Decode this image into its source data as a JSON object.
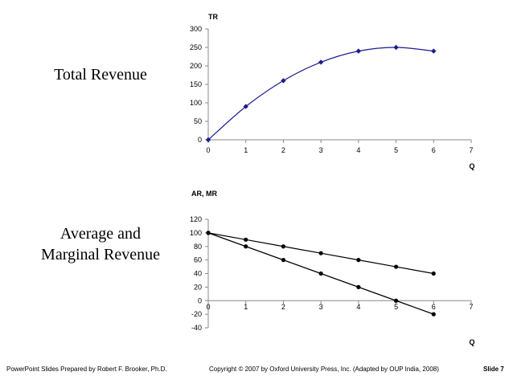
{
  "left_labels": {
    "total_revenue": "Total Revenue",
    "average_line1": "Average and",
    "average_line2": "Marginal Revenue"
  },
  "footer": {
    "left": "PowerPoint Slides Prepared by Robert F. Brooker, Ph.D.",
    "center": "Copyright © 2007 by Oxford University Press, Inc. (Adapted by OUP India, 2008)",
    "slide": "Slide 7"
  },
  "chart_data": [
    {
      "type": "line",
      "title": "TR",
      "xlabel": "Q",
      "ylabel": "TR",
      "x": [
        0,
        1,
        2,
        3,
        4,
        5,
        6
      ],
      "series": [
        {
          "name": "TR",
          "values": [
            0,
            90,
            160,
            210,
            240,
            250,
            240
          ],
          "color": "#1c1c8c",
          "marker": "diamond",
          "smooth": true
        }
      ],
      "xlim": [
        0,
        7
      ],
      "ylim": [
        0,
        300
      ],
      "xticks": [
        0,
        1,
        2,
        3,
        4,
        5,
        6,
        7
      ],
      "yticks": [
        0,
        50,
        100,
        150,
        200,
        250,
        300
      ]
    },
    {
      "type": "line",
      "title": "AR, MR",
      "xlabel": "Q",
      "ylabel": "AR, MR",
      "x": [
        0,
        1,
        2,
        3,
        4,
        5,
        6
      ],
      "series": [
        {
          "name": "AR",
          "values": [
            100,
            90,
            80,
            70,
            60,
            50,
            40
          ],
          "color": "#000000",
          "marker": "circle"
        },
        {
          "name": "MR",
          "values": [
            100,
            80,
            60,
            40,
            20,
            0,
            -20
          ],
          "color": "#000000",
          "marker": "circle"
        }
      ],
      "xlim": [
        0,
        7
      ],
      "ylim": [
        -40,
        120
      ],
      "xticks": [
        0,
        1,
        2,
        3,
        4,
        5,
        6,
        7
      ],
      "yticks": [
        -40,
        -20,
        0,
        20,
        40,
        60,
        80,
        100,
        120
      ]
    }
  ]
}
